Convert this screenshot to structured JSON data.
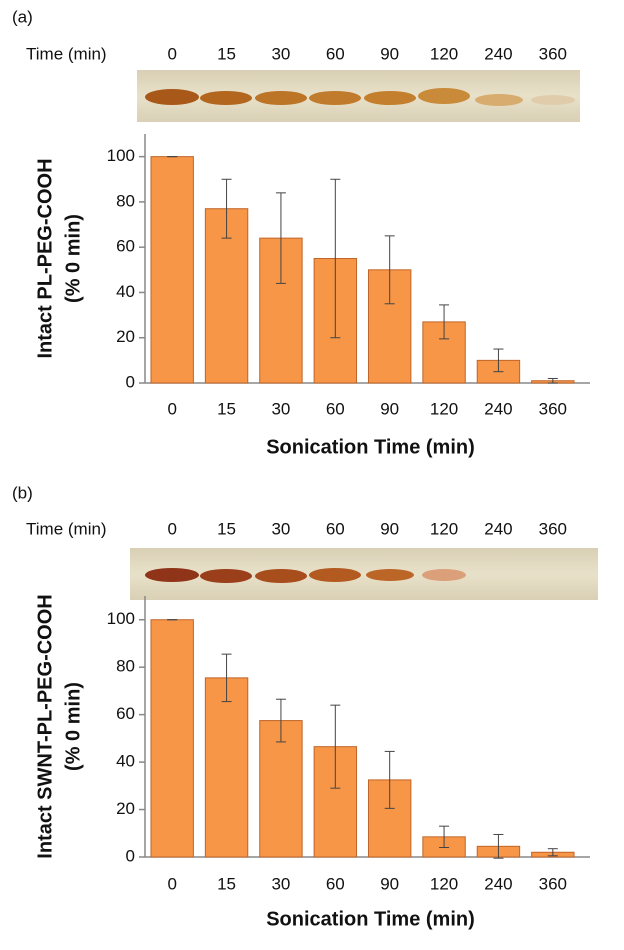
{
  "chart_data": [
    {
      "type": "bar",
      "panel": "(a)",
      "gel_label": "Time (min)",
      "ylabel": [
        "Intact PL-PEG-COOH",
        "(% 0 min)"
      ],
      "xlabel": "Sonication Time (min)",
      "categories": [
        "0",
        "15",
        "30",
        "60",
        "90",
        "120",
        "240",
        "360"
      ],
      "values": [
        100,
        77,
        64,
        55,
        50,
        27,
        10,
        1
      ],
      "errors": [
        0,
        13,
        20,
        35,
        15,
        7.5,
        5,
        1
      ],
      "color": "#f79646",
      "ylim": [
        0,
        110
      ],
      "yticks": [
        0,
        20,
        40,
        60,
        80,
        100
      ],
      "grid": false
    },
    {
      "type": "bar",
      "panel": "(b)",
      "gel_label": "Time (min)",
      "ylabel": [
        "Intact SWNT-PL-PEG-COOH",
        "(% 0 min)"
      ],
      "xlabel": "Sonication Time (min)",
      "categories": [
        "0",
        "15",
        "30",
        "60",
        "90",
        "120",
        "240",
        "360"
      ],
      "values": [
        100,
        75.5,
        57.5,
        46.5,
        32.5,
        8.5,
        4.5,
        2
      ],
      "errors": [
        0,
        10,
        9,
        17.5,
        12,
        4.5,
        5,
        1.5
      ],
      "color": "#f79646",
      "ylim": [
        0,
        110
      ],
      "yticks": [
        0,
        20,
        40,
        60,
        80,
        100
      ],
      "grid": false
    }
  ]
}
